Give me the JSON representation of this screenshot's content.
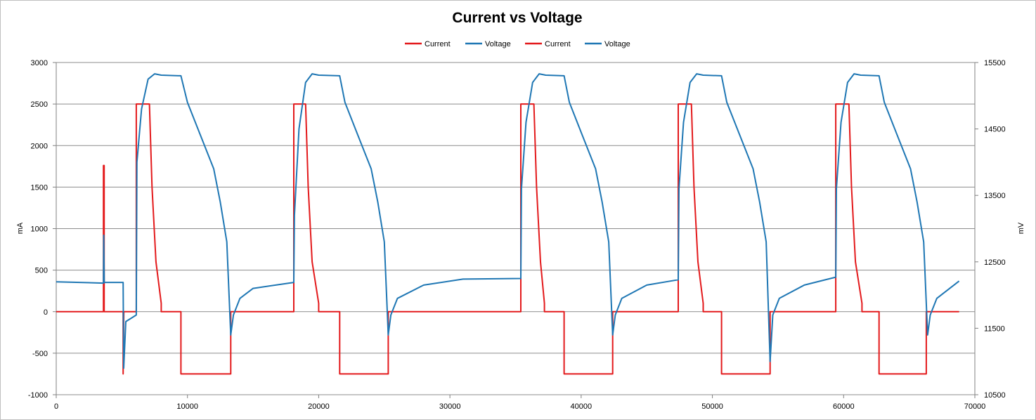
{
  "chart_data": {
    "type": "line",
    "title": "Current vs Voltage",
    "xlabel": "",
    "ylabel": "mA",
    "y2label": "mV",
    "xlim": [
      0,
      70000
    ],
    "ylim": [
      -1000,
      3000
    ],
    "y2lim": [
      10500,
      15500
    ],
    "x_ticks": [
      "0",
      "10000",
      "20000",
      "30000",
      "40000",
      "50000",
      "60000",
      "70000"
    ],
    "y_ticks": [
      "-1000",
      "-500",
      "0",
      "500",
      "1000",
      "1500",
      "2000",
      "2500",
      "3000"
    ],
    "y2_ticks": [
      "10500",
      "11500",
      "12500",
      "13500",
      "14500",
      "15500"
    ],
    "grid": "horizontal",
    "legend": "top",
    "legend_entries": [
      "Current",
      "Voltage",
      "Current",
      "Voltage"
    ],
    "colors": {
      "current": "#e31a1c",
      "voltage": "#1f77b4"
    },
    "series": [
      {
        "name": "Current",
        "axis": "left",
        "x": [
          0,
          3600,
          3600,
          3650,
          3650,
          5100,
          5100,
          5150,
          6100,
          6100,
          7100,
          7300,
          7600,
          8000,
          8000,
          9500,
          9500,
          13300,
          13300,
          18100,
          18100,
          19000,
          19200,
          19500,
          20000,
          20000,
          21600,
          21600,
          25300,
          25300,
          35400,
          35400,
          36400,
          36600,
          36900,
          37200,
          37200,
          38700,
          38700,
          42400,
          42400,
          47400,
          47400,
          48400,
          48600,
          48900,
          49300,
          49300,
          50700,
          50700,
          54400,
          54400,
          59400,
          59400,
          60400,
          60600,
          60900,
          61400,
          61400,
          62700,
          62700,
          66300,
          66300,
          68800
        ],
        "y": [
          0,
          0,
          1760,
          1760,
          0,
          0,
          -750,
          0,
          0,
          2500,
          2500,
          1500,
          600,
          100,
          0,
          0,
          -750,
          -750,
          0,
          0,
          2500,
          2500,
          1500,
          600,
          100,
          0,
          0,
          -750,
          -750,
          0,
          0,
          2500,
          2500,
          1500,
          600,
          100,
          0,
          0,
          -750,
          -750,
          0,
          0,
          2500,
          2500,
          1500,
          600,
          100,
          0,
          0,
          -750,
          -750,
          0,
          0,
          2500,
          2500,
          1500,
          600,
          100,
          0,
          0,
          -750,
          -750,
          0,
          0
        ]
      },
      {
        "name": "Voltage",
        "axis": "right",
        "x": [
          0,
          3600,
          3620,
          3660,
          5100,
          5140,
          5300,
          6100,
          6150,
          6500,
          7000,
          7500,
          8000,
          9500,
          10000,
          11000,
          12000,
          12500,
          13000,
          13300,
          13500,
          14000,
          15000,
          18100,
          18150,
          18500,
          19000,
          19500,
          20000,
          21600,
          22000,
          23000,
          24000,
          24500,
          25000,
          25300,
          25500,
          26000,
          28000,
          31000,
          35400,
          35450,
          35800,
          36300,
          36800,
          37300,
          38700,
          39100,
          40100,
          41100,
          41600,
          42100,
          42400,
          42600,
          43100,
          45000,
          47400,
          47450,
          47800,
          48300,
          48800,
          49300,
          50700,
          51100,
          52100,
          53100,
          53600,
          54100,
          54400,
          54600,
          55100,
          57000,
          59400,
          59450,
          59800,
          60300,
          60800,
          61300,
          62700,
          63100,
          64100,
          65100,
          65600,
          66100,
          66400,
          66600,
          67100,
          68800
        ],
        "y": [
          12200,
          12180,
          12900,
          12190,
          12190,
          10900,
          11600,
          11700,
          14000,
          14800,
          15250,
          15330,
          15310,
          15300,
          14900,
          14400,
          13900,
          13400,
          12800,
          11400,
          11700,
          11950,
          12100,
          12190,
          13200,
          14500,
          15200,
          15330,
          15310,
          15300,
          14900,
          14400,
          13900,
          13400,
          12800,
          11400,
          11700,
          11950,
          12150,
          12240,
          12250,
          13600,
          14600,
          15200,
          15330,
          15310,
          15300,
          14900,
          14400,
          13900,
          13400,
          12800,
          11400,
          11700,
          11950,
          12150,
          12230,
          13600,
          14600,
          15200,
          15330,
          15310,
          15300,
          14900,
          14400,
          13900,
          13400,
          12800,
          11000,
          11700,
          11950,
          12150,
          12270,
          13600,
          14600,
          15200,
          15330,
          15310,
          15300,
          14900,
          14400,
          13900,
          13400,
          12800,
          11400,
          11700,
          11950,
          12210
        ]
      }
    ]
  }
}
